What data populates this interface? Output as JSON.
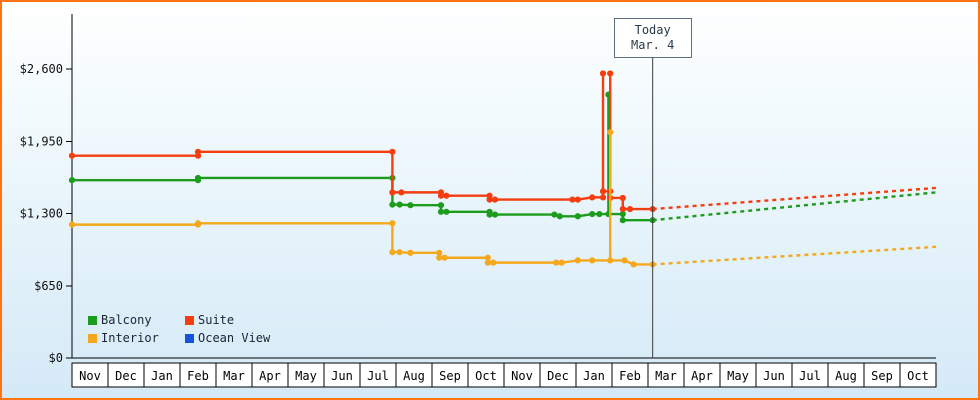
{
  "colors": {
    "frame_border": "#ff7412",
    "today_line": "#3c3c3c"
  },
  "chart_data": {
    "type": "line",
    "description": "Cruise cabin price history by category with dashed future projection",
    "x_unit": "month_index",
    "y_unit": "USD",
    "y_axis": {
      "range": [
        0,
        2600
      ],
      "ticks": [
        {
          "value": 0,
          "label": "$0"
        },
        {
          "value": 650,
          "label": "$650"
        },
        {
          "value": 1300,
          "label": "$1,300"
        },
        {
          "value": 1950,
          "label": "$1,950"
        },
        {
          "value": 2600,
          "label": "$2,600"
        }
      ]
    },
    "x_axis": {
      "months": [
        "Nov",
        "Dec",
        "Jan",
        "Feb",
        "Mar",
        "Apr",
        "May",
        "Jun",
        "Jul",
        "Aug",
        "Sep",
        "Oct",
        "Nov",
        "Dec",
        "Jan",
        "Feb",
        "Mar",
        "Apr",
        "May",
        "Jun",
        "Jul",
        "Aug",
        "Sep",
        "Oct"
      ]
    },
    "today": {
      "label_line1": "Today",
      "label_line2": "Mar. 4",
      "month_index": 16.13
    },
    "series": [
      {
        "name": "Balcony",
        "color": "#1c9c1c",
        "points": [
          [
            0,
            1600
          ],
          [
            3.5,
            1600
          ],
          [
            3.5,
            1620
          ],
          [
            8.9,
            1620
          ],
          [
            8.9,
            1380
          ],
          [
            9.1,
            1380
          ],
          [
            9.4,
            1375
          ],
          [
            10.25,
            1375
          ],
          [
            10.25,
            1315
          ],
          [
            10.4,
            1315
          ],
          [
            11.6,
            1315
          ],
          [
            11.6,
            1290
          ],
          [
            11.75,
            1290
          ],
          [
            13.4,
            1290
          ],
          [
            13.55,
            1275
          ],
          [
            14.05,
            1275
          ],
          [
            14.45,
            1295
          ],
          [
            14.65,
            1295
          ],
          [
            14.9,
            1295
          ],
          [
            14.9,
            2370
          ],
          [
            14.9,
            1295
          ],
          [
            15.3,
            1295
          ],
          [
            15.3,
            1240
          ],
          [
            16.13,
            1240
          ]
        ],
        "projection": [
          [
            16.13,
            1240
          ],
          [
            24,
            1490
          ]
        ]
      },
      {
        "name": "Suite",
        "color": "#f53d10",
        "points": [
          [
            0,
            1820
          ],
          [
            3.5,
            1820
          ],
          [
            3.5,
            1855
          ],
          [
            8.9,
            1855
          ],
          [
            8.9,
            1490
          ],
          [
            9.15,
            1490
          ],
          [
            10.25,
            1490
          ],
          [
            10.25,
            1460
          ],
          [
            10.4,
            1460
          ],
          [
            11.6,
            1460
          ],
          [
            11.6,
            1425
          ],
          [
            11.75,
            1425
          ],
          [
            13.9,
            1425
          ],
          [
            14.05,
            1425
          ],
          [
            14.45,
            1445
          ],
          [
            14.75,
            1445
          ],
          [
            14.75,
            2560
          ],
          [
            14.75,
            1500
          ],
          [
            14.95,
            1500
          ],
          [
            14.95,
            2560
          ],
          [
            14.95,
            1440
          ],
          [
            15.3,
            1440
          ],
          [
            15.3,
            1340
          ],
          [
            15.5,
            1340
          ],
          [
            16.13,
            1340
          ]
        ],
        "projection": [
          [
            16.13,
            1340
          ],
          [
            24,
            1530
          ]
        ]
      },
      {
        "name": "Interior",
        "color": "#f5a81c",
        "points": [
          [
            0,
            1200
          ],
          [
            3.5,
            1200
          ],
          [
            3.5,
            1212
          ],
          [
            8.9,
            1212
          ],
          [
            8.9,
            952
          ],
          [
            9.1,
            952
          ],
          [
            9.4,
            946
          ],
          [
            10.2,
            946
          ],
          [
            10.2,
            902
          ],
          [
            10.35,
            902
          ],
          [
            11.55,
            902
          ],
          [
            11.55,
            858
          ],
          [
            11.7,
            858
          ],
          [
            13.45,
            858
          ],
          [
            13.6,
            858
          ],
          [
            14.05,
            878
          ],
          [
            14.45,
            878
          ],
          [
            14.95,
            878
          ],
          [
            14.95,
            2030
          ],
          [
            14.95,
            878
          ],
          [
            15.35,
            878
          ],
          [
            15.6,
            842
          ],
          [
            16.13,
            842
          ]
        ],
        "projection": [
          [
            16.13,
            842
          ],
          [
            24,
            1000
          ]
        ]
      },
      {
        "name": "Ocean View",
        "color": "#1453dd",
        "points": [],
        "projection": []
      }
    ],
    "legend_position": "bottom-left"
  }
}
